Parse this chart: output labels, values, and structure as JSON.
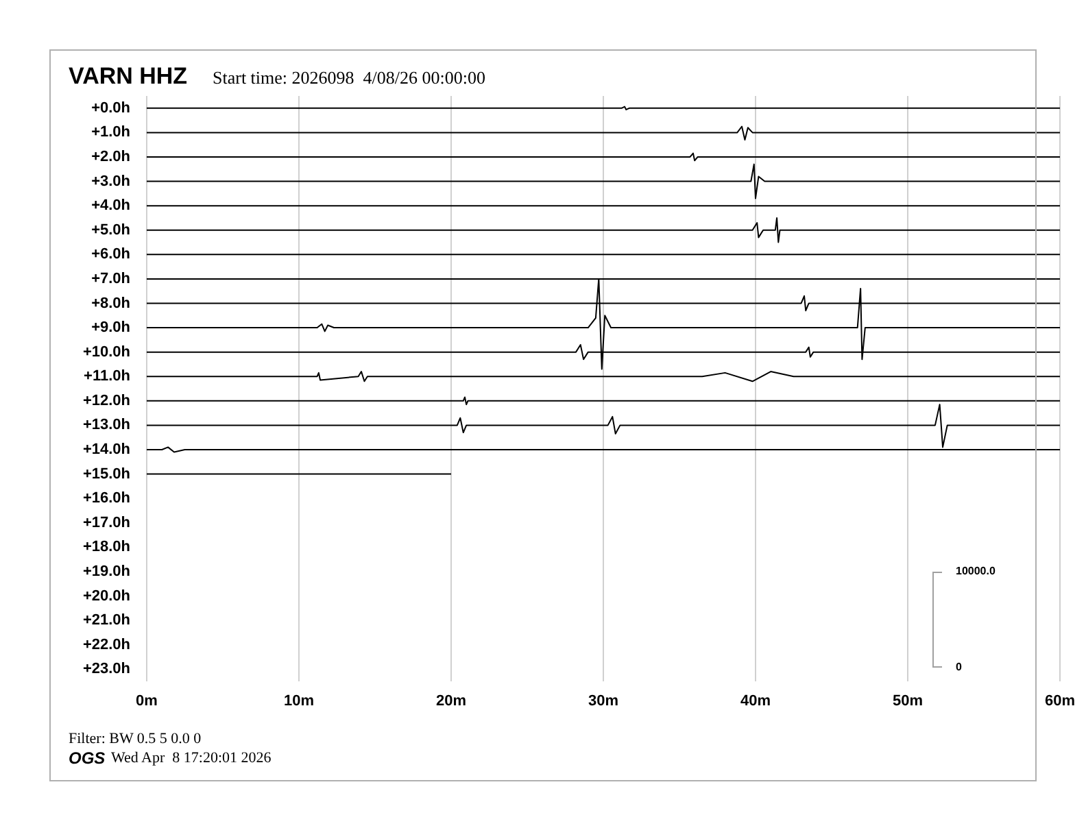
{
  "chart_data": {
    "type": "line",
    "title": "VARN HHZ",
    "subtitle": "Start time: 2026098  4/08/26 00:00:00",
    "annotations": [
      "Filter: BW 0.5 5 0.0 0",
      "OGS",
      "Wed Apr  8 17:20:01 2026",
      "10000.0",
      "0"
    ],
    "xlim": [
      0,
      60
    ],
    "xticks": [
      {
        "value": 0,
        "label": "0m"
      },
      {
        "value": 10,
        "label": "10m"
      },
      {
        "value": 20,
        "label": "20m"
      },
      {
        "value": 30,
        "label": "30m"
      },
      {
        "value": 40,
        "label": "40m"
      },
      {
        "value": 50,
        "label": "50m"
      },
      {
        "value": 60,
        "label": "60m"
      }
    ],
    "ylim": [
      23.5,
      -0.5
    ],
    "yticks": [
      {
        "value": 0,
        "label": "+0.0h"
      },
      {
        "value": 1,
        "label": "+1.0h"
      },
      {
        "value": 2,
        "label": "+2.0h"
      },
      {
        "value": 3,
        "label": "+3.0h"
      },
      {
        "value": 4,
        "label": "+4.0h"
      },
      {
        "value": 5,
        "label": "+5.0h"
      },
      {
        "value": 6,
        "label": "+6.0h"
      },
      {
        "value": 7,
        "label": "+7.0h"
      },
      {
        "value": 8,
        "label": "+8.0h"
      },
      {
        "value": 9,
        "label": "+9.0h"
      },
      {
        "value": 10,
        "label": "+10.0h"
      },
      {
        "value": 11,
        "label": "+11.0h"
      },
      {
        "value": 12,
        "label": "+12.0h"
      },
      {
        "value": 13,
        "label": "+13.0h"
      },
      {
        "value": 14,
        "label": "+14.0h"
      },
      {
        "value": 15,
        "label": "+15.0h"
      },
      {
        "value": 16,
        "label": "+16.0h"
      },
      {
        "value": 17,
        "label": "+17.0h"
      },
      {
        "value": 18,
        "label": "+18.0h"
      },
      {
        "value": 19,
        "label": "+19.0h"
      },
      {
        "value": 20,
        "label": "+20.0h"
      },
      {
        "value": 21,
        "label": "+21.0h"
      },
      {
        "value": 22,
        "label": "+22.0h"
      },
      {
        "value": 23,
        "label": "+23.0h"
      }
    ],
    "grid": "x",
    "legend": false,
    "marker": "none",
    "line_style": "solid",
    "series": [
      {
        "color": "#000000",
        "x": [
          0,
          31.2,
          31.4,
          31.5,
          31.7,
          60
        ],
        "values": [
          0,
          0,
          -0.06,
          0.06,
          0,
          0
        ]
      },
      {
        "color": "#000000",
        "x": [
          0,
          38.8,
          39.1,
          39.3,
          39.5,
          39.8,
          60
        ],
        "values": [
          1,
          1,
          0.75,
          1.3,
          0.8,
          1,
          1
        ]
      },
      {
        "color": "#000000",
        "x": [
          0,
          35.7,
          35.9,
          36.0,
          36.2,
          60
        ],
        "values": [
          2,
          2,
          1.85,
          2.15,
          2,
          2
        ]
      },
      {
        "color": "#000000",
        "x": [
          0,
          39.7,
          39.9,
          40.0,
          40.2,
          40.6,
          60
        ],
        "values": [
          3,
          3,
          2.3,
          3.7,
          2.8,
          3,
          3
        ]
      },
      {
        "color": "#000000",
        "x": [
          0,
          60
        ],
        "values": [
          4,
          4
        ]
      },
      {
        "color": "#000000",
        "x": [
          0,
          39.8,
          40.1,
          40.2,
          40.5,
          41.3,
          41.4,
          41.5,
          41.6,
          60
        ],
        "values": [
          5,
          5,
          4.7,
          5.3,
          5,
          5,
          4.5,
          5.5,
          5,
          5
        ]
      },
      {
        "color": "#000000",
        "x": [
          0,
          60
        ],
        "values": [
          6,
          6
        ]
      },
      {
        "color": "#000000",
        "x": [
          0,
          60
        ],
        "values": [
          7,
          7
        ]
      },
      {
        "color": "#000000",
        "x": [
          0,
          43.0,
          43.2,
          43.3,
          43.5,
          60
        ],
        "values": [
          8,
          8,
          7.7,
          8.3,
          8,
          8
        ]
      },
      {
        "color": "#000000",
        "x": [
          0,
          11.2,
          11.5,
          11.7,
          11.9,
          12.3,
          29.0,
          29.5,
          29.7,
          29.9,
          30.1,
          30.5,
          46.7,
          46.9,
          47.0,
          47.2,
          60
        ],
        "values": [
          9,
          9,
          8.85,
          9.15,
          8.9,
          9,
          9,
          8.6,
          7.0,
          10.7,
          8.5,
          9,
          9,
          7.4,
          10.3,
          9,
          9
        ]
      },
      {
        "color": "#000000",
        "x": [
          0,
          28.2,
          28.5,
          28.7,
          29.0,
          43.3,
          43.5,
          43.6,
          43.8,
          60
        ],
        "values": [
          10,
          10,
          9.7,
          10.3,
          10,
          10,
          9.8,
          10.2,
          10,
          10
        ]
      },
      {
        "color": "#000000",
        "x": [
          0,
          11.2,
          11.3,
          11.4,
          13.9,
          14.1,
          14.3,
          14.5,
          36.5,
          38,
          39.8,
          41,
          42.5,
          60
        ],
        "values": [
          11,
          11,
          10.85,
          11.15,
          11,
          10.8,
          11.2,
          11,
          11,
          10.85,
          11.2,
          10.8,
          11,
          11
        ]
      },
      {
        "color": "#000000",
        "x": [
          0,
          20.8,
          20.9,
          21.0,
          21.1,
          60
        ],
        "values": [
          12,
          12,
          11.85,
          12.15,
          12,
          12
        ]
      },
      {
        "color": "#000000",
        "x": [
          0,
          20.4,
          20.6,
          20.8,
          21.0,
          30.3,
          30.6,
          30.8,
          31.1,
          51.8,
          52.1,
          52.3,
          52.6,
          60
        ],
        "values": [
          13,
          13,
          12.7,
          13.3,
          13,
          13,
          12.65,
          13.35,
          13,
          13,
          12.15,
          13.9,
          13,
          13
        ]
      },
      {
        "color": "#000000",
        "x": [
          0,
          1.0,
          1.4,
          1.8,
          2.5,
          60
        ],
        "values": [
          14,
          14,
          13.9,
          14.1,
          14,
          14
        ]
      },
      {
        "color": "#000000",
        "x": [
          0,
          20
        ],
        "values": [
          15,
          15
        ]
      }
    ]
  }
}
